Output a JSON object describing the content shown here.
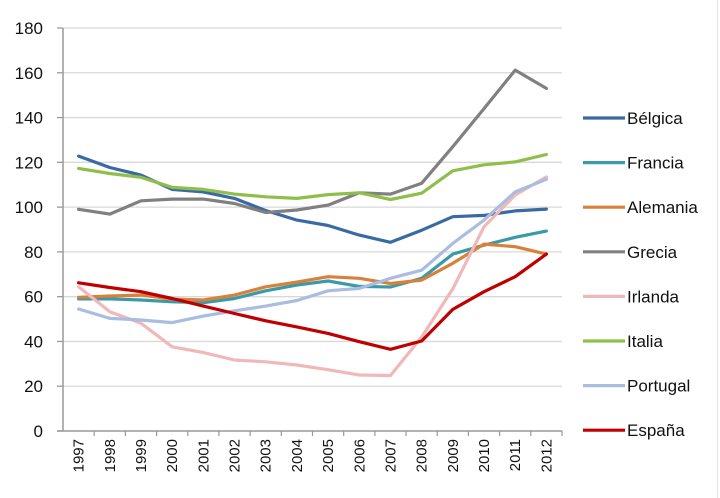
{
  "chart_data": {
    "type": "line",
    "title": "",
    "xlabel": "",
    "ylabel": "",
    "ylim": [
      0,
      180
    ],
    "yticks": [
      0,
      20,
      40,
      60,
      80,
      100,
      120,
      140,
      160,
      180
    ],
    "grid": true,
    "legend_position": "right",
    "categories": [
      "1997",
      "1998",
      "1999",
      "2000",
      "2001",
      "2002",
      "2003",
      "2004",
      "2005",
      "2006",
      "2007",
      "2008",
      "2009",
      "2010",
      "2011",
      "2012"
    ],
    "series": [
      {
        "name": "Bélgica",
        "color": "#3a6aa6",
        "values": [
          122.8,
          117.7,
          114.3,
          107.9,
          106.8,
          103.9,
          98.5,
          94.2,
          91.8,
          87.5,
          84.3,
          89.7,
          95.7,
          96.3,
          98.3,
          99.1
        ]
      },
      {
        "name": "Francia",
        "color": "#3b9aa8",
        "values": [
          59.0,
          59.0,
          58.5,
          57.7,
          57.3,
          59.2,
          62.6,
          65.2,
          67.0,
          64.6,
          64.3,
          68.2,
          79.0,
          83.0,
          86.5,
          89.3
        ]
      },
      {
        "name": "Alemania",
        "color": "#d9803a",
        "values": [
          59.7,
          60.3,
          60.7,
          58.9,
          58.5,
          60.7,
          64.4,
          66.5,
          68.9,
          68.2,
          65.9,
          67.4,
          74.9,
          83.5,
          82.3,
          79.0
        ]
      },
      {
        "name": "Grecia",
        "color": "#808080",
        "values": [
          99.0,
          96.9,
          102.8,
          103.6,
          103.6,
          101.6,
          97.6,
          98.7,
          100.9,
          106.4,
          105.8,
          110.7,
          127.0,
          144.0,
          161.2,
          153.0
        ]
      },
      {
        "name": "Irlanda",
        "color": "#f0b8b8",
        "values": [
          64.4,
          53.3,
          48.1,
          37.6,
          35.0,
          31.7,
          30.9,
          29.5,
          27.4,
          25.0,
          24.8,
          42.0,
          63.5,
          91.2,
          105.4,
          113.5
        ]
      },
      {
        "name": "Italia",
        "color": "#8fbf4a",
        "values": [
          117.3,
          115.0,
          113.3,
          108.8,
          107.9,
          105.8,
          104.6,
          103.9,
          105.6,
          106.4,
          103.4,
          106.2,
          116.2,
          118.9,
          120.2,
          123.5
        ]
      },
      {
        "name": "Portugal",
        "color": "#a9bde0",
        "values": [
          54.5,
          50.3,
          49.6,
          48.4,
          51.3,
          53.7,
          55.8,
          58.3,
          62.6,
          63.7,
          68.2,
          71.8,
          83.8,
          94.2,
          106.8,
          112.4
        ]
      },
      {
        "name": "España",
        "color": "#c00000",
        "values": [
          66.2,
          64.1,
          62.2,
          59.2,
          55.8,
          52.5,
          49.2,
          46.5,
          43.6,
          39.9,
          36.5,
          40.2,
          54.3,
          62.2,
          68.9,
          79.0
        ]
      }
    ]
  }
}
